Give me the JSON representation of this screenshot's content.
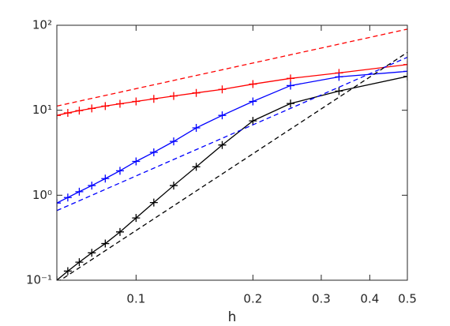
{
  "chart_data": {
    "type": "line",
    "xlabel": "h",
    "xlog": true,
    "ylog": true,
    "xlim": [
      0.0625,
      0.5
    ],
    "ylim": [
      0.1,
      100
    ],
    "xticks": [
      0.1,
      0.2,
      0.3,
      0.4,
      0.5
    ],
    "yticks": [
      {
        "value": 0.1,
        "label": "10⁻¹"
      },
      {
        "value": 1,
        "label": "10⁰"
      },
      {
        "value": 10,
        "label": "10¹"
      },
      {
        "value": 100,
        "label": "10²"
      }
    ],
    "series": [
      {
        "color": "#ff0000",
        "style": "solid",
        "marker": "+",
        "x": [
          0.0625,
          0.0667,
          0.0714,
          0.0769,
          0.0833,
          0.0909,
          0.1,
          0.1111,
          0.125,
          0.1429,
          0.1667,
          0.2,
          0.25,
          0.3333,
          0.5
        ],
        "values": [
          8.7,
          9.3,
          9.9,
          10.5,
          11.2,
          11.9,
          12.7,
          13.6,
          14.7,
          16.0,
          17.6,
          20.3,
          23.7,
          27.5,
          34.5
        ]
      },
      {
        "color": "#0000ff",
        "style": "solid",
        "marker": "+",
        "x": [
          0.0625,
          0.0667,
          0.0714,
          0.0769,
          0.0833,
          0.0909,
          0.1,
          0.1111,
          0.125,
          0.1429,
          0.1667,
          0.2,
          0.25,
          0.3333,
          0.5
        ],
        "values": [
          0.81,
          0.94,
          1.1,
          1.3,
          1.57,
          1.94,
          2.5,
          3.2,
          4.3,
          6.2,
          8.7,
          12.7,
          19.5,
          24.7,
          28.7
        ]
      },
      {
        "color": "#000000",
        "style": "solid",
        "marker": "+",
        "x": [
          0.0625,
          0.0667,
          0.0714,
          0.0769,
          0.0833,
          0.0909,
          0.1,
          0.1111,
          0.125,
          0.1429,
          0.1667,
          0.2,
          0.25,
          0.3333,
          0.5
        ],
        "values": [
          0.1,
          0.128,
          0.163,
          0.21,
          0.27,
          0.37,
          0.54,
          0.82,
          1.3,
          2.16,
          3.9,
          7.5,
          12,
          16.8,
          25
        ]
      },
      {
        "color": "#ff0000",
        "style": "dashed",
        "x": [
          0.0625,
          0.5
        ],
        "values": [
          11.2,
          90
        ]
      },
      {
        "color": "#0000ff",
        "style": "dashed",
        "x": [
          0.0625,
          0.5
        ],
        "values": [
          0.66,
          42
        ]
      },
      {
        "color": "#000000",
        "style": "dashed",
        "x": [
          0.0625,
          0.5
        ],
        "values": [
          0.094,
          48
        ]
      }
    ]
  }
}
